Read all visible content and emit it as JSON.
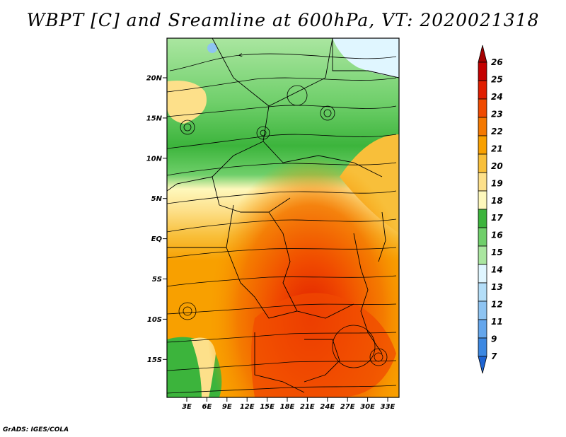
{
  "title": "WBPT [C] and Sreamline at 600hPa, VT: 2020021318",
  "footer": "GrADS: IGES/COLA",
  "map": {
    "lat_labels": [
      "20N",
      "15N",
      "10N",
      "5N",
      "EQ",
      "5S",
      "10S",
      "15S"
    ],
    "lon_labels": [
      "3E",
      "6E",
      "9E",
      "12E",
      "15E",
      "18E",
      "21E",
      "24E",
      "27E",
      "30E",
      "33E"
    ]
  },
  "colorbar": {
    "levels": [
      "26",
      "25",
      "24",
      "23",
      "22",
      "21",
      "20",
      "19",
      "18",
      "17",
      "16",
      "15",
      "14",
      "13",
      "12",
      "11",
      "9",
      "7"
    ],
    "colors": [
      "#a50000",
      "#c40000",
      "#e01d00",
      "#f04a00",
      "#f47800",
      "#f8a000",
      "#f8bf3a",
      "#fde08a",
      "#fef8bc",
      "#3cb43c",
      "#6fcf6a",
      "#aae6a0",
      "#e0f6ff",
      "#b4def8",
      "#8ec4f2",
      "#64a6ec",
      "#3c88e2",
      "#1e64d2"
    ]
  },
  "colors": {
    "orange": "#f8a000",
    "deep_orange": "#f47800",
    "yellow": "#fde08a",
    "green": "#3cb43c",
    "light_green": "#aae6a0"
  }
}
